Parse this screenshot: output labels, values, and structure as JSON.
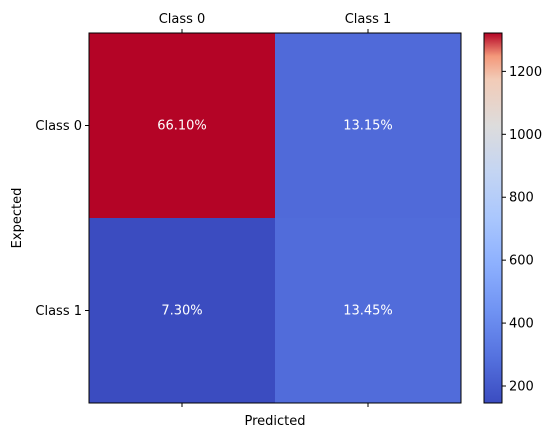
{
  "chart_data": {
    "type": "heatmap",
    "title": "",
    "xlabel": "Predicted",
    "ylabel": "Expected",
    "x_categories": [
      "Class 0",
      "Class 1"
    ],
    "y_categories": [
      "Class 0",
      "Class 1"
    ],
    "cells": [
      [
        {
          "value": 1322,
          "label": "66.10%"
        },
        {
          "value": 263,
          "label": "13.15%"
        }
      ],
      [
        {
          "value": 146,
          "label": "7.30%"
        },
        {
          "value": 269,
          "label": "13.45%"
        }
      ]
    ],
    "colorbar": {
      "colormap": "coolwarm",
      "vmin": 146,
      "vmax": 1322,
      "ticks": [
        200,
        400,
        600,
        800,
        1000,
        1200
      ]
    },
    "x_ticks_position": "top",
    "grid": false,
    "legend": "colorbar-right",
    "colors": {
      "cell_text": "#ffffff",
      "axis": "#000000"
    }
  }
}
